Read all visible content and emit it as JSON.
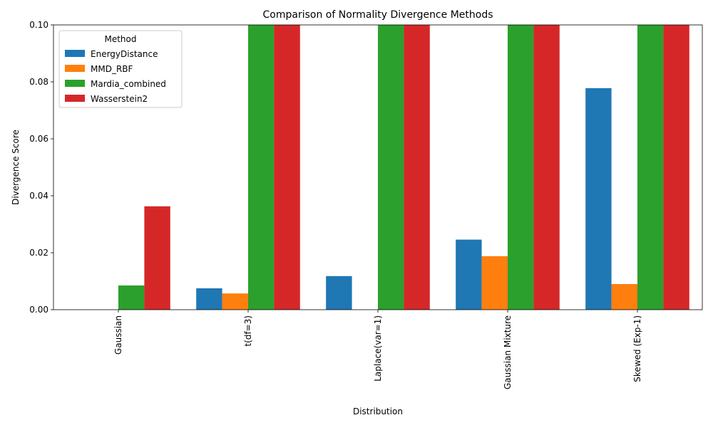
{
  "chart_data": {
    "type": "bar",
    "title": "Comparison of Normality Divergence Methods",
    "xlabel": "Distribution",
    "ylabel": "Divergence Score",
    "ylim": [
      0,
      0.1
    ],
    "yticks": [
      "0.00",
      "0.02",
      "0.04",
      "0.06",
      "0.08",
      "0.10"
    ],
    "grid": false,
    "legend_title": "Method",
    "legend_position": "top-left",
    "categories": [
      "Gaussian",
      "t(df=3)",
      "Laplace(var=1)",
      "Gaussian Mixture",
      "Skewed (Exp-1)"
    ],
    "series": [
      {
        "name": "EnergyDistance",
        "color": "#1f77b4",
        "values": [
          0.0,
          0.0075,
          0.0118,
          0.0246,
          0.0778
        ]
      },
      {
        "name": "MMD_RBF",
        "color": "#ff7f0e",
        "values": [
          0.0,
          0.0057,
          0.0,
          0.0188,
          0.009
        ]
      },
      {
        "name": "Mardia_combined",
        "color": "#2ca02c",
        "values": [
          0.0085,
          0.1,
          0.1,
          0.1,
          0.1
        ]
      },
      {
        "name": "Wasserstein2",
        "color": "#d62728",
        "values": [
          0.0363,
          0.1,
          0.1,
          0.1,
          0.1
        ]
      }
    ]
  }
}
